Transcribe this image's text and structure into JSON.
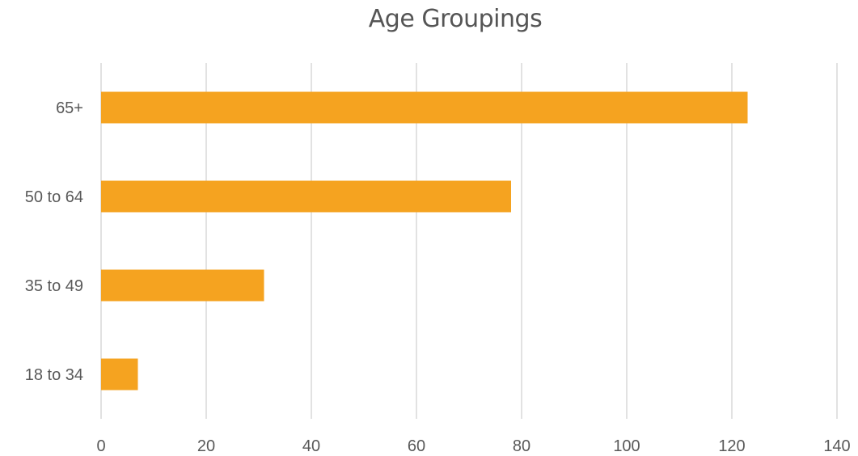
{
  "chart_data": {
    "type": "bar",
    "orientation": "horizontal",
    "title": "Age Groupings",
    "categories": [
      "18 to 34",
      "35 to 49",
      "50 to 64",
      "65+"
    ],
    "values": [
      7,
      31,
      78,
      123
    ],
    "xlabel": "",
    "ylabel": "",
    "xlim": [
      0,
      140
    ],
    "x_ticks": [
      "0",
      "20",
      "40",
      "60",
      "80",
      "100",
      "120",
      "140"
    ],
    "grid": "vertical",
    "legend": "none",
    "bar_color": "#f5a320"
  }
}
